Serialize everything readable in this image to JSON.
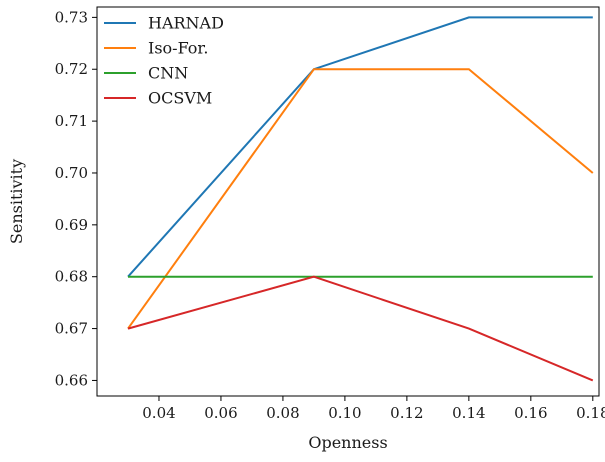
{
  "chart_data": {
    "type": "line",
    "title": "",
    "xlabel": "Openness",
    "ylabel": "Sensitivity",
    "x": [
      0.03,
      0.09,
      0.14,
      0.18
    ],
    "xlim": [
      0.02,
      0.182
    ],
    "ylim": [
      0.657,
      0.732
    ],
    "xticks": [
      0.04,
      0.06,
      0.08,
      0.1,
      0.12,
      0.14,
      0.16,
      0.18
    ],
    "xtick_labels": [
      "0.04",
      "0.06",
      "0.08",
      "0.10",
      "0.12",
      "0.14",
      "0.16",
      "0.18"
    ],
    "yticks": [
      0.66,
      0.67,
      0.68,
      0.69,
      0.7,
      0.71,
      0.72,
      0.73
    ],
    "ytick_labels": [
      "0.66",
      "0.67",
      "0.68",
      "0.69",
      "0.70",
      "0.71",
      "0.72",
      "0.73"
    ],
    "grid": false,
    "legend_position": "top-left",
    "series": [
      {
        "name": "HARNAD",
        "color": "#1f77b4",
        "values": [
          0.68,
          0.72,
          0.73,
          0.73
        ]
      },
      {
        "name": "Iso-For.",
        "color": "#ff7f0e",
        "values": [
          0.67,
          0.72,
          0.72,
          0.7
        ]
      },
      {
        "name": "CNN",
        "color": "#2ca02c",
        "values": [
          0.68,
          0.68,
          0.68,
          0.68
        ]
      },
      {
        "name": "OCSVM",
        "color": "#d62728",
        "values": [
          0.67,
          0.68,
          0.67,
          0.66
        ]
      }
    ]
  }
}
